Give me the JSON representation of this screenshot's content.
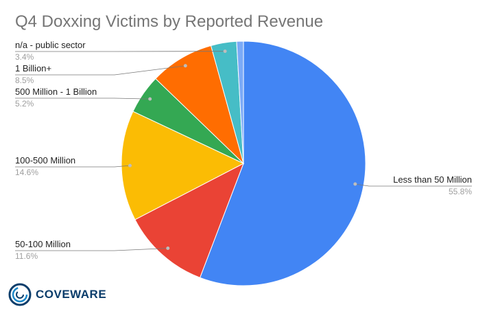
{
  "chart_data": {
    "type": "pie",
    "title": "Q4 Doxxing Victims by Reported Revenue",
    "slices": [
      {
        "label": "Less than 50 Million",
        "value": 55.8,
        "pct_label": "55.8%",
        "color": "#4285f4"
      },
      {
        "label": "50-100 Million",
        "value": 11.6,
        "pct_label": "11.6%",
        "color": "#ea4335"
      },
      {
        "label": "100-500 Million",
        "value": 14.6,
        "pct_label": "14.6%",
        "color": "#fbbc04"
      },
      {
        "label": "500 Million - 1 Billion",
        "value": 5.2,
        "pct_label": "5.2%",
        "color": "#34a853"
      },
      {
        "label": "1 Billion+",
        "value": 8.5,
        "pct_label": "8.5%",
        "color": "#ff6d01"
      },
      {
        "label": "n/a - public sector",
        "value": 3.4,
        "pct_label": "3.4%",
        "color": "#46bdc6"
      },
      {
        "label": "",
        "value": 0.9,
        "pct_label": "",
        "color": "#7baaf7"
      }
    ],
    "legend": "none",
    "start": "top",
    "direction": "clockwise"
  },
  "logo": {
    "text": "COVEWARE",
    "icon": "coveware-swirl-icon",
    "color": "#0b3d6b"
  }
}
